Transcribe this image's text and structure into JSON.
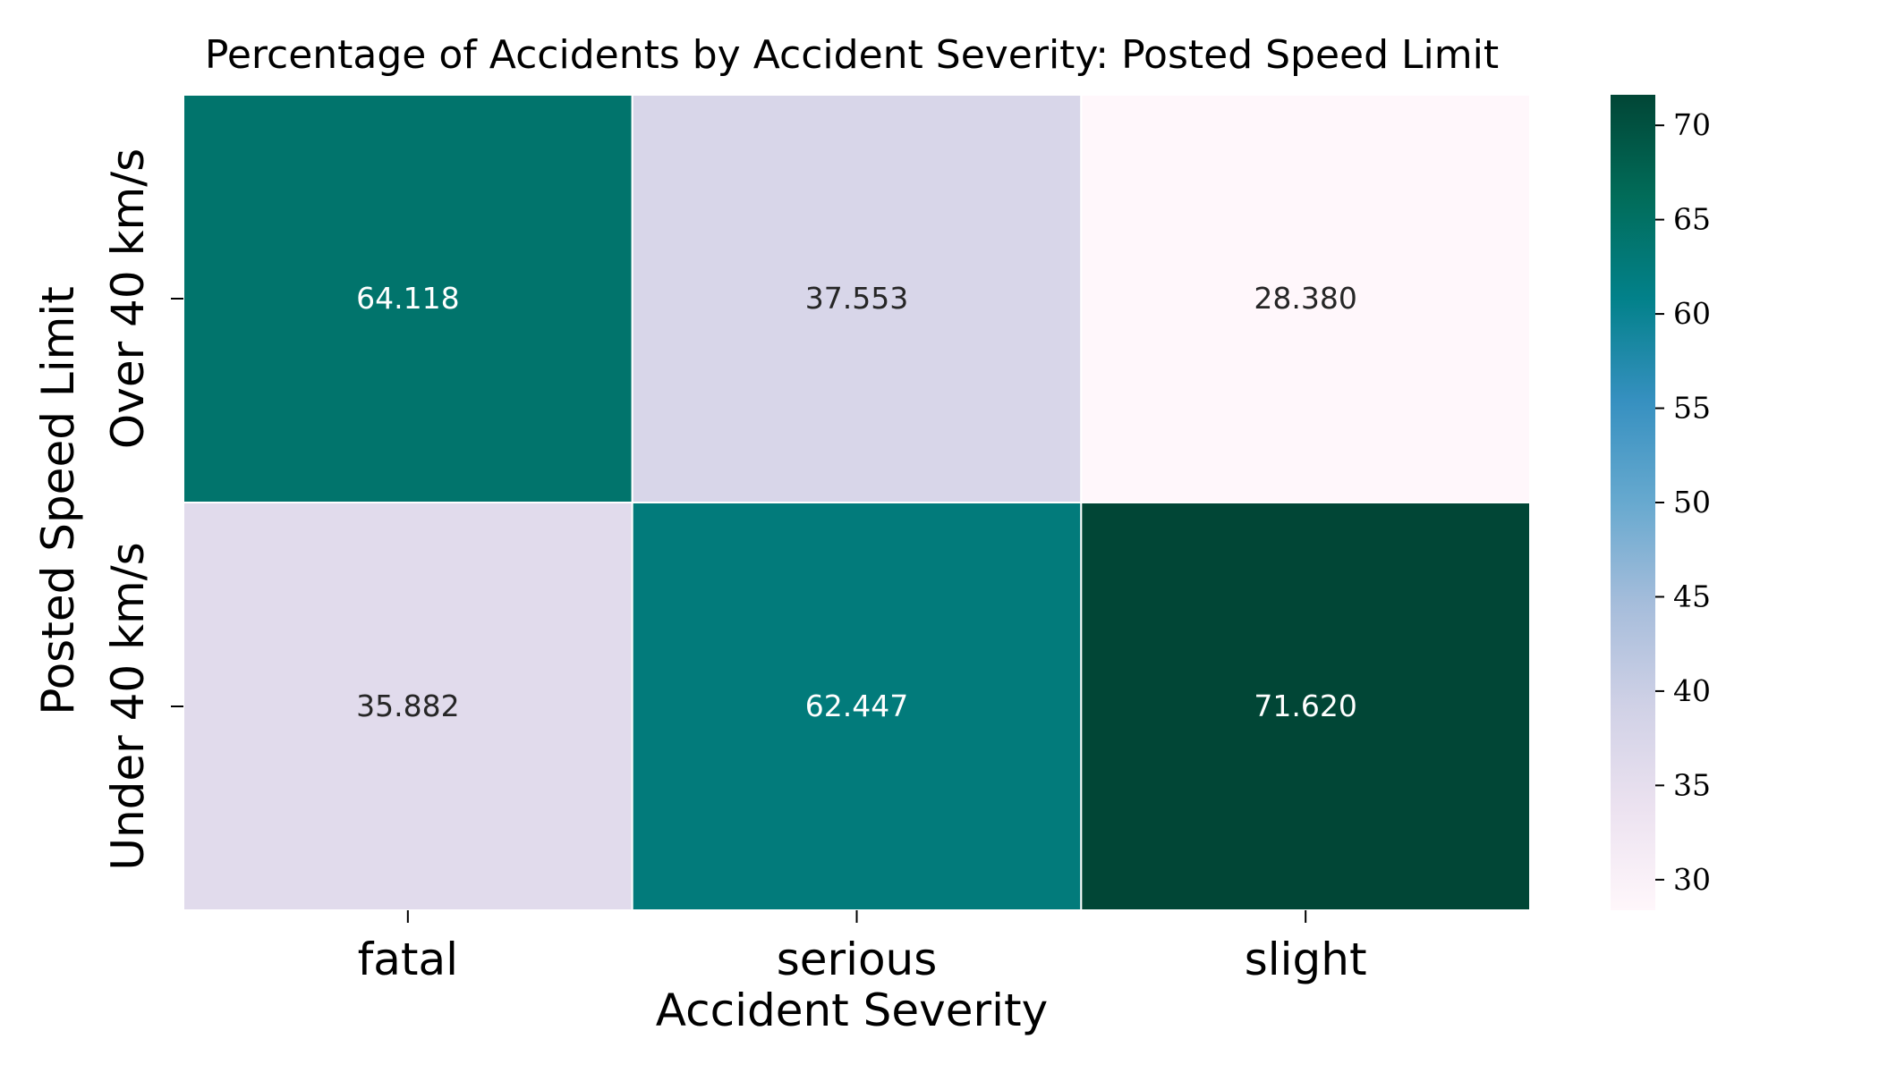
{
  "chart_data": {
    "type": "heatmap",
    "title": "Percentage of Accidents by Accident Severity: Posted Speed Limit",
    "xlabel": "Accident Severity",
    "ylabel": "Posted Speed Limit",
    "x_categories": [
      "fatal",
      "serious",
      "slight"
    ],
    "y_categories": [
      "Over 40 km/s",
      "Under 40 km/s"
    ],
    "values": [
      [
        64.118,
        37.553,
        28.38
      ],
      [
        35.882,
        62.447,
        71.62
      ]
    ],
    "value_labels": [
      [
        "64.118",
        "37.553",
        "28.380"
      ],
      [
        "35.882",
        "62.447",
        "71.620"
      ]
    ],
    "colormap": "PuBuGn",
    "colorbar": {
      "range": [
        28.38,
        71.62
      ],
      "ticks": [
        30,
        35,
        40,
        45,
        50,
        55,
        60,
        65,
        70
      ],
      "tick_labels": [
        "30",
        "35",
        "40",
        "45",
        "50",
        "55",
        "60",
        "65",
        "70"
      ]
    },
    "grid": false
  }
}
